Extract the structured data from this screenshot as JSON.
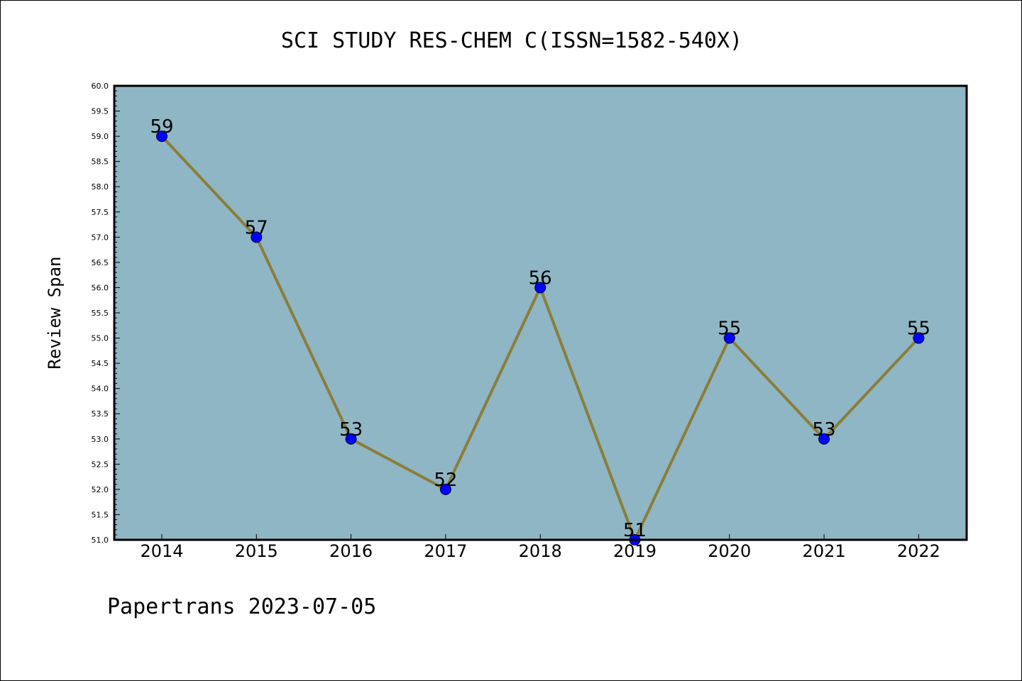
{
  "chart_data": {
    "type": "line",
    "title": "SCI STUDY RES-CHEM C(ISSN=1582-540X)",
    "xlabel": "",
    "ylabel": "Review Span",
    "categories": [
      "2014",
      "2015",
      "2016",
      "2017",
      "2018",
      "2019",
      "2020",
      "2021",
      "2022"
    ],
    "values": [
      59,
      57,
      53,
      52,
      56,
      51,
      55,
      53,
      55
    ],
    "ylim": [
      51.0,
      60.0
    ],
    "ytick_step": 0.5,
    "grid": false,
    "legend": "none",
    "colors": {
      "plot_background": "#8fb6c4",
      "line": "#8b7d3a",
      "marker": "#0000ff"
    }
  },
  "footer": {
    "text": "Papertrans 2023-07-05"
  }
}
